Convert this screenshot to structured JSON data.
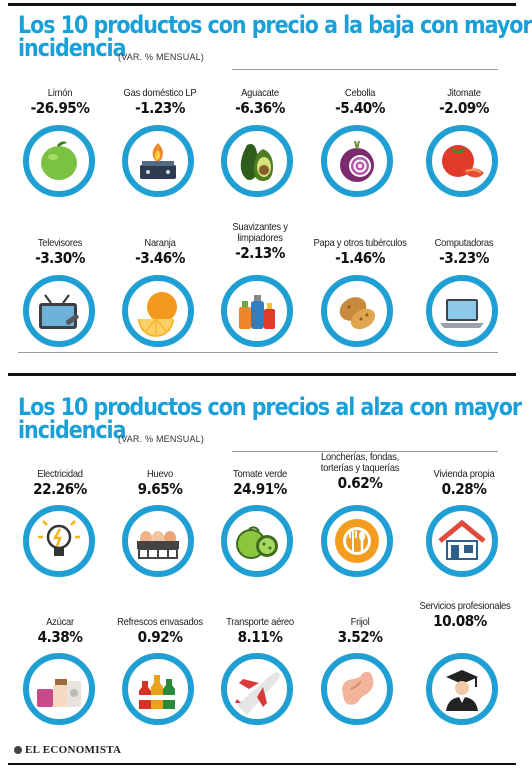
{
  "section1": {
    "title_line1": "Los 10 productos con precio a la baja con mayor",
    "title_line2": "incidencia",
    "subtitle": "(VAR. % MENSUAL)",
    "items": [
      {
        "label": "Limón",
        "value": "-26.95%",
        "icon": "lime-icon"
      },
      {
        "label": "Gas doméstico LP",
        "value": "-1.23%",
        "icon": "gas-stove-icon"
      },
      {
        "label": "Aguacate",
        "value": "-6.36%",
        "icon": "avocado-icon"
      },
      {
        "label": "Cebolla",
        "value": "-5.40%",
        "icon": "onion-icon"
      },
      {
        "label": "Jitomate",
        "value": "-2.09%",
        "icon": "tomato-icon"
      },
      {
        "label": "Televisores",
        "value": "-3.30%",
        "icon": "television-icon"
      },
      {
        "label": "Naranja",
        "value": "-3.46%",
        "icon": "orange-icon"
      },
      {
        "label": "Suavizantes y limpiadores",
        "value": "-2.13%",
        "icon": "cleaners-icon"
      },
      {
        "label": "Papa y otros tubérculos",
        "value": "-1.46%",
        "icon": "potato-icon"
      },
      {
        "label": "Computadoras",
        "value": "-3.23%",
        "icon": "laptop-icon"
      }
    ]
  },
  "section2": {
    "title_line1": "Los 10 productos con precios al alza con mayor",
    "title_line2": "incidencia",
    "subtitle": "(VAR. % MENSUAL)",
    "items": [
      {
        "label": "Electricidad",
        "value": "22.26%",
        "icon": "lightbulb-icon"
      },
      {
        "label": "Huevo",
        "value": "9.65%",
        "icon": "eggs-icon"
      },
      {
        "label": "Tomate verde",
        "value": "24.91%",
        "icon": "green-tomato-icon"
      },
      {
        "label": "Loncherías, fondas, torterías y taquerías",
        "value": "0.62%",
        "icon": "plate-utensils-icon"
      },
      {
        "label": "Vivienda propia",
        "value": "0.28%",
        "icon": "house-icon"
      },
      {
        "label": "Azúcar",
        "value": "4.38%",
        "icon": "sugar-icon"
      },
      {
        "label": "Refrescos envasados",
        "value": "0.92%",
        "icon": "soda-bottles-icon"
      },
      {
        "label": "Transporte aéreo",
        "value": "8.11%",
        "icon": "airplane-icon"
      },
      {
        "label": "Frijol",
        "value": "3.52%",
        "icon": "bean-icon"
      },
      {
        "label": "Servicios profesionales",
        "value": "10.08%",
        "icon": "graduate-icon"
      }
    ]
  },
  "footer": {
    "brand": "EL ECONOMISTA"
  },
  "colors": {
    "accent": "#1aa0d8",
    "circle": "#1f9fd3"
  }
}
